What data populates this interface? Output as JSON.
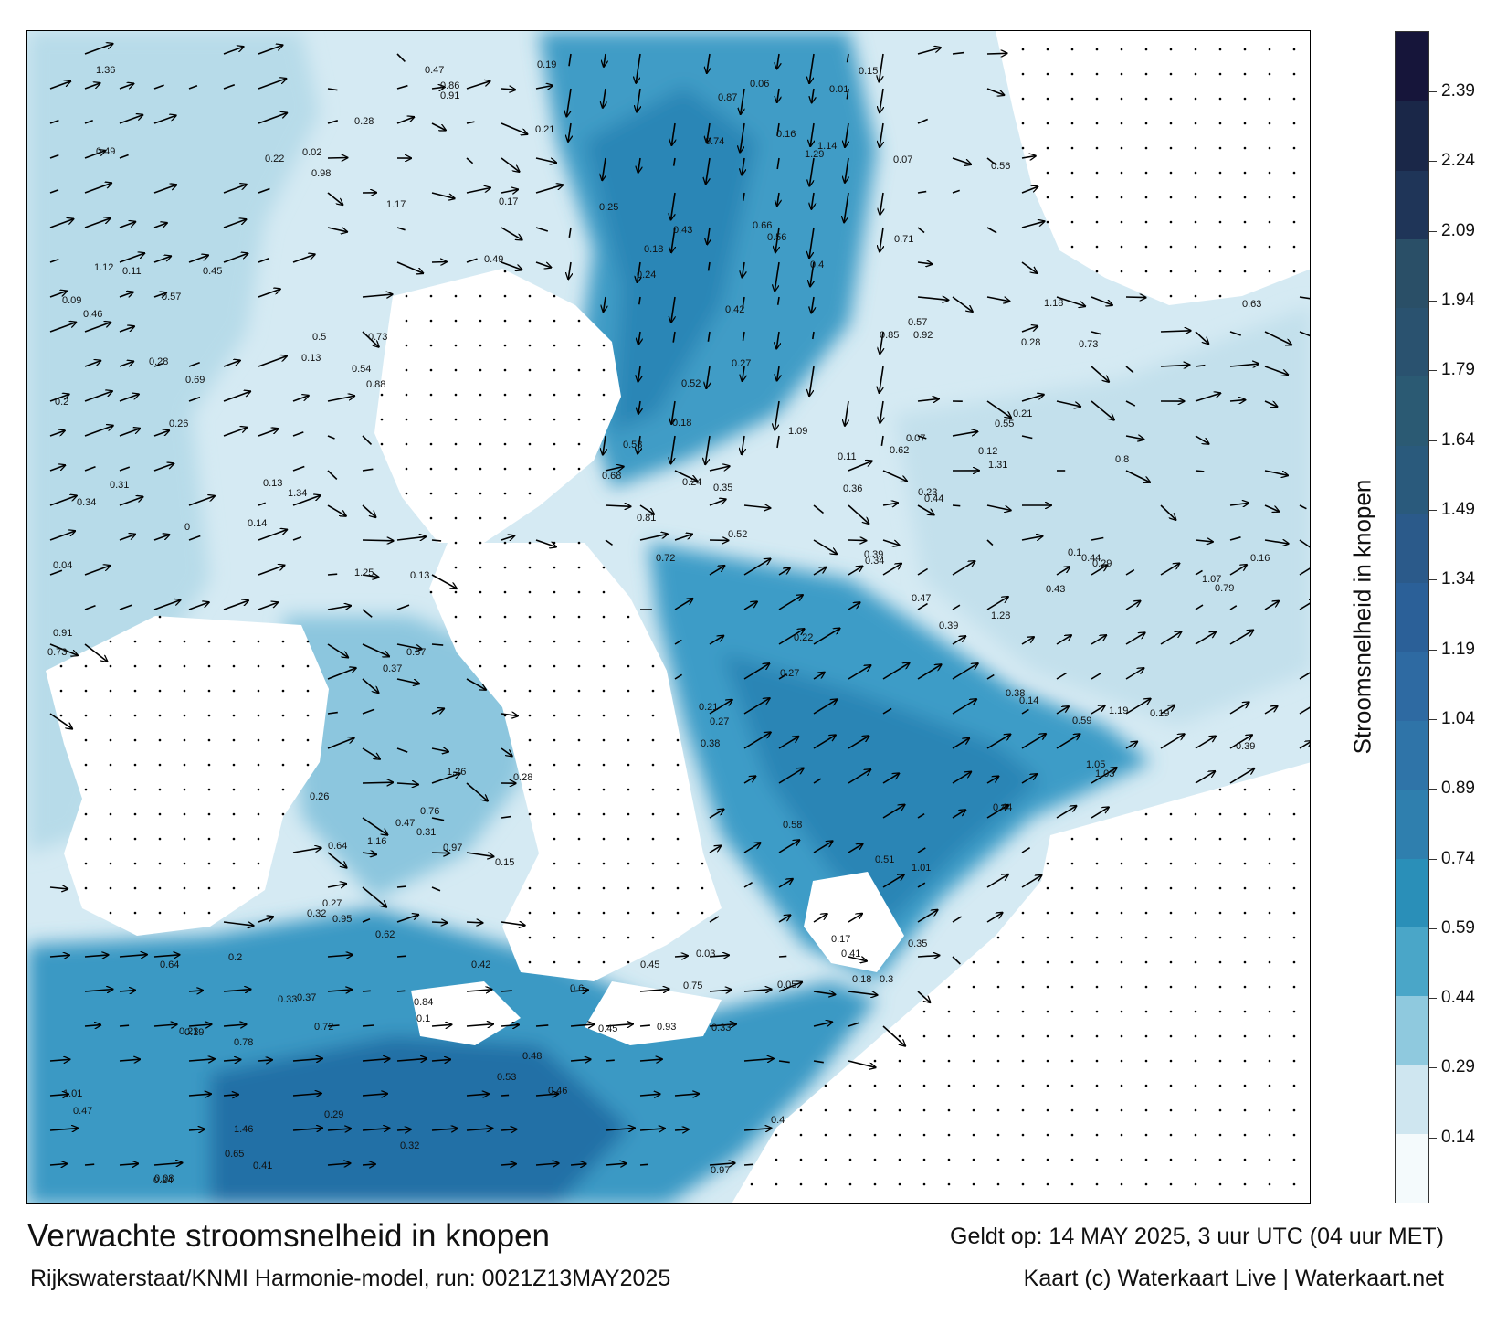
{
  "title": "Verwachte stroomsnelheid in knopen",
  "model_run": "Rijkswaterstaat/KNMI Harmonie-model, run: 0021Z13MAY2025",
  "valid_time": "Geldt op: 14 MAY 2025, 3 uur UTC (04 uur MET)",
  "credit": "Kaart (c) Waterkaart Live | Waterkaart.net",
  "legend": {
    "title": "Stroomsnelheid in knopen",
    "ticks": [
      "0.14",
      "0.29",
      "0.44",
      "0.59",
      "0.74",
      "0.89",
      "1.04",
      "1.19",
      "1.34",
      "1.49",
      "1.64",
      "1.79",
      "1.94",
      "2.09",
      "2.24",
      "2.39"
    ],
    "max_value": 2.52,
    "colors": [
      "#f4fafc",
      "#cfe6f0",
      "#8fc9de",
      "#4aa6c8",
      "#2a8fb8",
      "#2f7fae",
      "#2f74a8",
      "#2e6aa2",
      "#2b6098",
      "#2b5a8a",
      "#2a5a7c",
      "#2b5a73",
      "#2a526f",
      "#2a4f67",
      "#1f3558",
      "#1a2748",
      "#16153a"
    ]
  },
  "map": {
    "sea_low_color": "#cde6f1",
    "sea_mid_color": "#5aaed0",
    "sea_high_color": "#1f7aa8",
    "land_color": "#ffffff",
    "arrow_color": "#000000",
    "speed_labels": [
      {
        "t": "0.26"
      },
      {
        "t": "0.37"
      },
      {
        "t": "0.28"
      },
      {
        "t": "0.11"
      },
      {
        "t": "0.22"
      },
      {
        "t": "0.57"
      },
      {
        "t": "0.1"
      },
      {
        "t": "0.19"
      },
      {
        "t": "0.18"
      },
      {
        "t": "0.23"
      },
      {
        "t": "0.24"
      },
      {
        "t": "0.27"
      },
      {
        "t": "0.07"
      },
      {
        "t": "0.21"
      },
      {
        "t": "0.2"
      },
      {
        "t": "0.19"
      },
      {
        "t": "0.27"
      },
      {
        "t": "0.58"
      },
      {
        "t": "0.13"
      },
      {
        "t": "0.17"
      },
      {
        "t": "0.06"
      },
      {
        "t": "0.03"
      },
      {
        "t": "0.05"
      },
      {
        "t": "0.04"
      },
      {
        "t": "0.16"
      },
      {
        "t": "0.28"
      },
      {
        "t": "0.18"
      },
      {
        "t": "0.32"
      },
      {
        "t": "0.29"
      },
      {
        "t": "0.34"
      },
      {
        "t": "0.33"
      },
      {
        "t": "0.21"
      },
      {
        "t": "0.15"
      },
      {
        "t": "0.24"
      },
      {
        "t": "0.18"
      },
      {
        "t": "0.72"
      },
      {
        "t": "0.73"
      },
      {
        "t": "0.87"
      },
      {
        "t": "0.97"
      },
      {
        "t": "1.16"
      },
      {
        "t": "0.85"
      },
      {
        "t": "0.67"
      },
      {
        "t": "0.63"
      },
      {
        "t": "0.62"
      },
      {
        "t": "0.69"
      },
      {
        "t": "0.71"
      },
      {
        "t": "0.72"
      },
      {
        "t": "0.97"
      },
      {
        "t": "1.03"
      },
      {
        "t": "0.73"
      },
      {
        "t": "0.56"
      },
      {
        "t": "0.57"
      },
      {
        "t": "0.47"
      },
      {
        "t": "0.45"
      },
      {
        "t": "0.44"
      },
      {
        "t": "0.47"
      },
      {
        "t": "0.41"
      },
      {
        "t": "0.32"
      },
      {
        "t": "0.35"
      },
      {
        "t": "0.44"
      },
      {
        "t": "0.39"
      },
      {
        "t": "0.4"
      },
      {
        "t": "0.26"
      },
      {
        "t": "0.45"
      },
      {
        "t": "0.38"
      },
      {
        "t": "0.31"
      },
      {
        "t": "0.29"
      },
      {
        "t": "0.28"
      },
      {
        "t": "0.27"
      },
      {
        "t": "0.24"
      },
      {
        "t": "0.19"
      },
      {
        "t": "0.14"
      },
      {
        "t": "0.13"
      },
      {
        "t": "0.11"
      },
      {
        "t": "0.16"
      },
      {
        "t": "0.65"
      },
      {
        "t": "0.86"
      },
      {
        "t": "0.91"
      },
      {
        "t": "0.95"
      },
      {
        "t": "1.07"
      },
      {
        "t": "1.14"
      },
      {
        "t": "0.92"
      },
      {
        "t": "0.76"
      },
      {
        "t": "0.81"
      },
      {
        "t": "0.79"
      },
      {
        "t": "0.75"
      },
      {
        "t": "0.78"
      },
      {
        "t": "0.91"
      },
      {
        "t": "0.84"
      },
      {
        "t": "0.64"
      },
      {
        "t": "0.62"
      },
      {
        "t": "0.54"
      },
      {
        "t": "0.47"
      },
      {
        "t": "0.43"
      },
      {
        "t": "0.49"
      },
      {
        "t": "0.52"
      },
      {
        "t": "0.46"
      },
      {
        "t": "0.42"
      },
      {
        "t": "0.39"
      },
      {
        "t": "1.26"
      },
      {
        "t": "1.36"
      },
      {
        "t": "1.25"
      },
      {
        "t": "1.31"
      },
      {
        "t": "1.34"
      },
      {
        "t": "1.29"
      },
      {
        "t": "1.19"
      },
      {
        "t": "1.18"
      },
      {
        "t": "1.12"
      },
      {
        "t": "1.17"
      },
      {
        "t": "1.05"
      },
      {
        "t": "1.09"
      },
      {
        "t": "1.01"
      },
      {
        "t": "0.98"
      },
      {
        "t": "0.88"
      },
      {
        "t": "0.74"
      },
      {
        "t": "0.73"
      },
      {
        "t": "0.64"
      },
      {
        "t": "0.59"
      },
      {
        "t": "0.55"
      },
      {
        "t": "0.52"
      },
      {
        "t": "0.51"
      },
      {
        "t": "0.49"
      },
      {
        "t": "0.47"
      },
      {
        "t": "0.46"
      },
      {
        "t": "0.45"
      },
      {
        "t": "0.44"
      },
      {
        "t": "0.43"
      },
      {
        "t": "0.42"
      },
      {
        "t": "0.41"
      },
      {
        "t": "0.4"
      },
      {
        "t": "0.39"
      },
      {
        "t": "0.37"
      },
      {
        "t": "0.36"
      },
      {
        "t": "0.35"
      },
      {
        "t": "0.33"
      },
      {
        "t": "0.3"
      },
      {
        "t": "0.28"
      },
      {
        "t": "0.27"
      },
      {
        "t": "0.25"
      },
      {
        "t": "0.22"
      },
      {
        "t": "0.2"
      },
      {
        "t": "0.12"
      },
      {
        "t": "0.1"
      },
      {
        "t": "0.09"
      },
      {
        "t": "0.08"
      },
      {
        "t": "0.02"
      },
      {
        "t": "0.01"
      },
      {
        "t": "0"
      },
      {
        "t": "1.28"
      },
      {
        "t": "1.46"
      },
      {
        "t": "1.01"
      },
      {
        "t": "0.93"
      },
      {
        "t": "0.8"
      },
      {
        "t": "0.68"
      },
      {
        "t": "0.66"
      },
      {
        "t": "0.6"
      },
      {
        "t": "0.58"
      },
      {
        "t": "0.56"
      },
      {
        "t": "0.53"
      },
      {
        "t": "0.5"
      },
      {
        "t": "0.48"
      },
      {
        "t": "0.38"
      },
      {
        "t": "0.34"
      },
      {
        "t": "0.31"
      },
      {
        "t": "0.23"
      },
      {
        "t": "0.21"
      },
      {
        "t": "0.17"
      },
      {
        "t": "0.15"
      },
      {
        "t": "0.14"
      },
      {
        "t": "0.13"
      },
      {
        "t": "0.07"
      }
    ]
  }
}
